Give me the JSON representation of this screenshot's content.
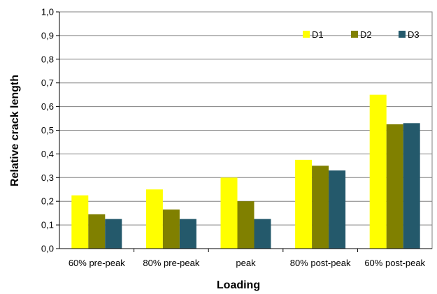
{
  "chart_data": {
    "type": "bar",
    "title": "",
    "xlabel": "Loading",
    "ylabel": "Relative crack length",
    "categories": [
      "60% pre-peak",
      "80% pre-peak",
      "peak",
      "80% post-peak",
      "60% post-peak"
    ],
    "series": [
      {
        "name": "D1",
        "color": "#FFFF00",
        "values": [
          0.225,
          0.25,
          0.3,
          0.375,
          0.65
        ]
      },
      {
        "name": "D2",
        "color": "#808000",
        "values": [
          0.145,
          0.165,
          0.2,
          0.35,
          0.525
        ]
      },
      {
        "name": "D3",
        "color": "#24596B",
        "values": [
          0.125,
          0.125,
          0.125,
          0.33,
          0.53
        ]
      }
    ],
    "ylim": [
      0,
      1.0
    ],
    "yticks": [
      "0,0",
      "0,1",
      "0,2",
      "0,3",
      "0,4",
      "0,5",
      "0,6",
      "0,7",
      "0,8",
      "0,9",
      "1,0"
    ],
    "grid": true,
    "legend_position": "top-right"
  }
}
